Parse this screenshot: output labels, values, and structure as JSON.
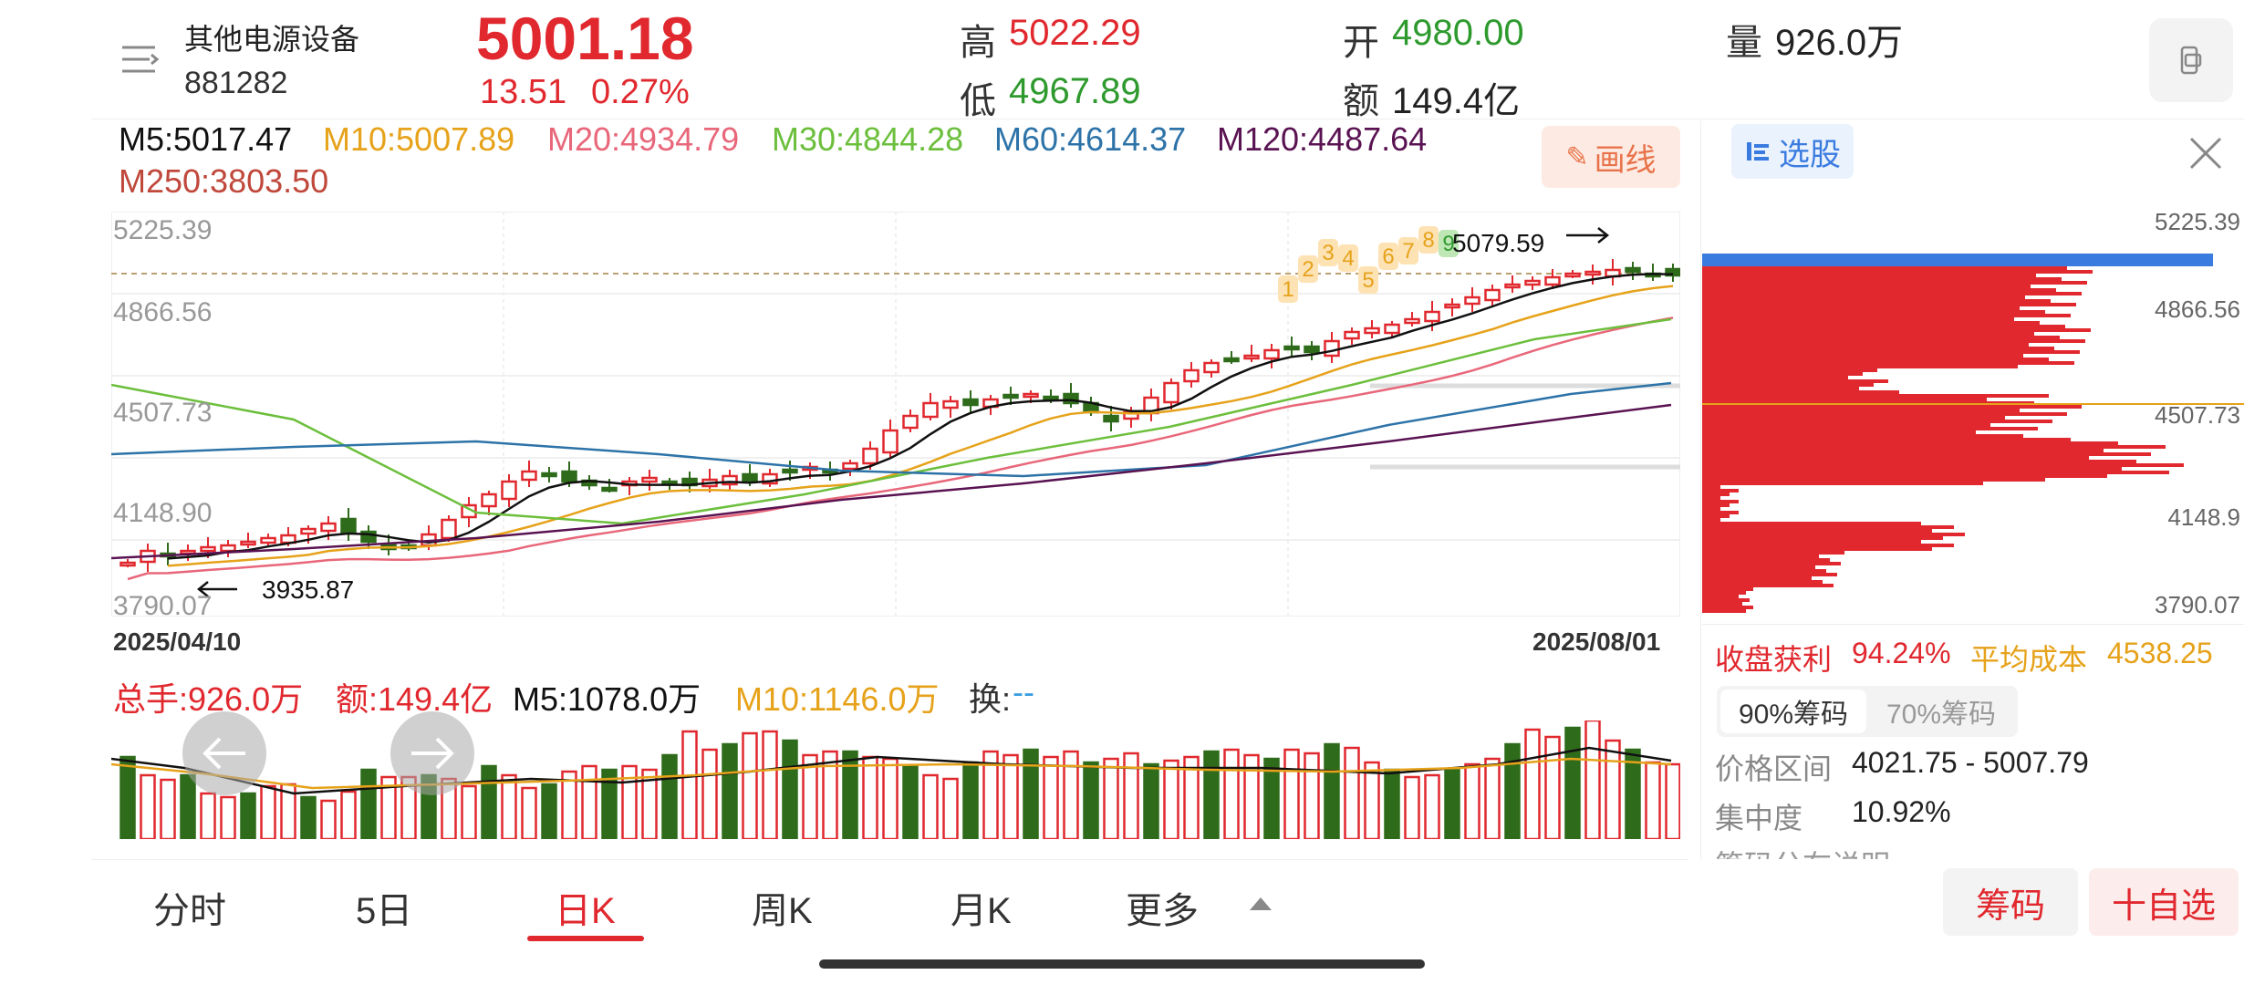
{
  "header": {
    "name": "其他电源设备",
    "code": "881282",
    "price": "5001.18",
    "change": "13.51",
    "change_pct": "0.27%",
    "high_label": "高",
    "high_val": "5022.29",
    "low_label": "低",
    "low_val": "4967.89",
    "open_label": "开",
    "open_val": "4980.00",
    "amount_label": "额",
    "amount_val": "149.4亿",
    "volume_label": "量",
    "volume_val": "926.0万"
  },
  "ma": {
    "m5": "M5:5017.47",
    "m10": "M10:5007.89",
    "m20": "M20:4934.79",
    "m30": "M30:4844.28",
    "m60": "M60:4614.37",
    "m120": "M120:4487.64",
    "m250": "M250:3803.50"
  },
  "draw_button": "画线",
  "chart": {
    "y_labels": [
      "5225.39",
      "4866.56",
      "4507.73",
      "4148.90",
      "3790.07"
    ],
    "date_start": "2025/04/10",
    "date_end": "2025/08/01",
    "low_annot": "3935.87",
    "high_annot": "5079.59",
    "seq_numbers": [
      "1",
      "2",
      "3",
      "4",
      "5",
      "6",
      "7",
      "8",
      "9"
    ]
  },
  "volume": {
    "total": "总手:926.0万",
    "amount": "额:149.4亿",
    "m5": "M5:1078.0万",
    "m10": "M10:1146.0万",
    "turnover_label": "换:",
    "turnover_val": "--"
  },
  "side": {
    "select_label": "选股",
    "y_labels": [
      "5225.39",
      "4866.56",
      "4507.73",
      "4148.9",
      "3790.07"
    ],
    "profit_label": "收盘获利",
    "profit_val": "94.24%",
    "avg_label": "平均成本",
    "avg_val": "4538.25",
    "tab90": "90%筹码",
    "tab70": "70%筹码",
    "range_label": "价格区间",
    "range_val": "4021.75 - 5007.79",
    "conc_label": "集中度",
    "conc_val": "10.92%",
    "desc_label": "筹码分布说明"
  },
  "tabs": [
    "分时",
    "5日",
    "日K",
    "周K",
    "月K",
    "更多"
  ],
  "active_tab": "日K",
  "chip_button": "筹码",
  "watch_button": "十自选",
  "colors": {
    "red": "#e0282e",
    "green": "#2e6b1a",
    "ma5": "#111111",
    "ma10": "#e6a21a",
    "ma20": "#e8677a",
    "ma30": "#6cbf3c",
    "ma60": "#2d73a8",
    "ma120": "#5a1352"
  }
}
